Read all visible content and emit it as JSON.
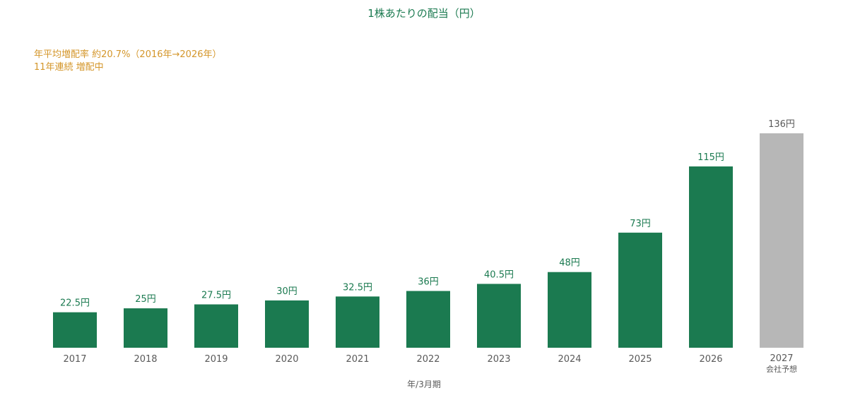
{
  "chart_data": {
    "type": "bar",
    "title": "1株あたりの配当（円）",
    "annotations": [
      "年平均増配率 約20.7%（2016年→2026年）",
      "11年連続 増配中"
    ],
    "categories": [
      "2017",
      "2018",
      "2019",
      "2020",
      "2021",
      "2022",
      "2023",
      "2024",
      "2025",
      "2026",
      "2027"
    ],
    "category_sublabels": [
      "",
      "",
      "",
      "",
      "",
      "",
      "",
      "",
      "",
      "",
      "会社予想"
    ],
    "values": [
      22.5,
      25,
      27.5,
      30,
      32.5,
      36,
      40.5,
      48,
      73,
      115,
      136
    ],
    "value_labels": [
      "22.5円",
      "25円",
      "27.5円",
      "30円",
      "32.5円",
      "36円",
      "40.5円",
      "48円",
      "73円",
      "115円",
      "136円"
    ],
    "forecast": [
      false,
      false,
      false,
      false,
      false,
      false,
      false,
      false,
      false,
      false,
      true
    ],
    "xlabel": "年/3月期",
    "ylabel": "",
    "ylim": [
      0,
      136
    ],
    "grid": false,
    "legend": "none",
    "colors": {
      "actual": "#1b7a50",
      "forecast": "#b7b7b7",
      "actual_label": "#1b7a50",
      "forecast_label": "#595959",
      "annotation": "#d4962a",
      "axis": "#595959"
    }
  }
}
